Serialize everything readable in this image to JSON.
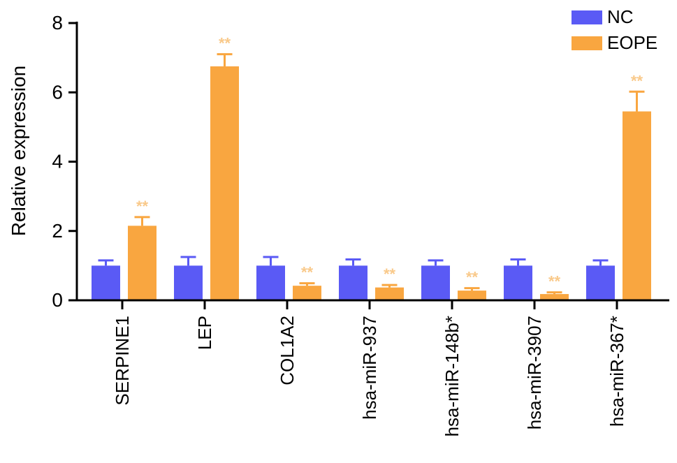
{
  "colors": {
    "nc": "#5a5af5",
    "eope": "#f9a640",
    "axis": "#000000",
    "sig": "#f9c98a"
  },
  "chart_data": {
    "type": "bar",
    "title": "",
    "xlabel": "",
    "ylabel": "Relative expression",
    "ylim": [
      0,
      8
    ],
    "yticks": [
      "0",
      "2",
      "4",
      "6",
      "8"
    ],
    "grid": false,
    "legend_position": "top-right",
    "categories": [
      "SERPINE1",
      "LEP",
      "COL1A2",
      "hsa-miR-937",
      "hsa-miR-148b*",
      "hsa-miR-3907",
      "hsa-miR-367*"
    ],
    "series": [
      {
        "name": "NC",
        "values": [
          1.0,
          1.0,
          1.0,
          1.0,
          1.0,
          1.0,
          1.0
        ],
        "errors": [
          0.15,
          0.25,
          0.25,
          0.18,
          0.15,
          0.18,
          0.15
        ]
      },
      {
        "name": "EOPE",
        "values": [
          2.15,
          6.75,
          0.42,
          0.37,
          0.28,
          0.18,
          5.45
        ],
        "errors": [
          0.25,
          0.35,
          0.07,
          0.07,
          0.07,
          0.05,
          0.57
        ]
      }
    ],
    "significance": [
      "**",
      "**",
      "**",
      "**",
      "**",
      "**",
      "**"
    ]
  }
}
